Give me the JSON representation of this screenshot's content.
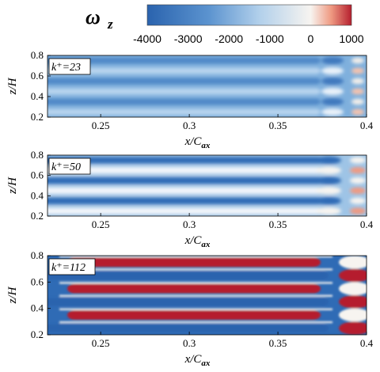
{
  "colorbar": {
    "symbol": "ω",
    "subscript": "z",
    "ticks": [
      "-4000",
      "-3000",
      "-2000",
      "-1000",
      "0",
      "1000"
    ],
    "tick_values": [
      -4000,
      -3000,
      -2000,
      -1000,
      0,
      1000
    ],
    "range": [
      -4000,
      1000
    ],
    "colors": {
      "min": "#2f6bb5",
      "mid_low": "#8db7df",
      "zero_white": "#f7f4f0",
      "pos_mid": "#ef9a82",
      "max": "#b51f2e"
    }
  },
  "panels": [
    {
      "label": "k⁺=23"
    },
    {
      "label": "k⁺=50"
    },
    {
      "label": "k⁺=112"
    }
  ],
  "xaxis": {
    "label_main": "x/C",
    "label_sub": "ax",
    "ticks": [
      "0.25",
      "0.3",
      "0.35",
      "0.4"
    ],
    "tick_values": [
      0.25,
      0.3,
      0.35,
      0.4
    ],
    "range": [
      0.22,
      0.4
    ]
  },
  "yaxis": {
    "label": "z/H",
    "ticks": [
      "0.2",
      "0.4",
      "0.6",
      "0.8"
    ],
    "tick_values": [
      0.2,
      0.4,
      0.6,
      0.8
    ],
    "range": [
      0.2,
      0.8
    ]
  }
}
